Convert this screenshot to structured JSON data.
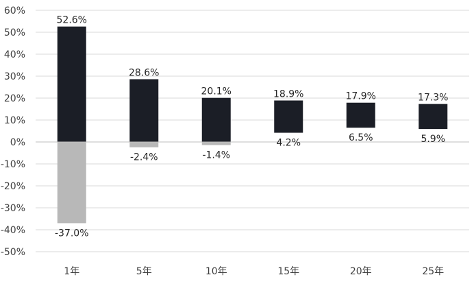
{
  "chart_data": {
    "type": "bar",
    "subtype": "floating-range",
    "categories": [
      "1年",
      "5年",
      "10年",
      "15年",
      "20年",
      "25年"
    ],
    "series": [
      {
        "role": "max",
        "values": [
          52.6,
          28.6,
          20.1,
          18.9,
          17.9,
          17.3
        ]
      },
      {
        "role": "min",
        "values": [
          -37.0,
          -2.4,
          -1.4,
          4.2,
          6.5,
          5.9
        ]
      }
    ],
    "max_labels": [
      "52.6%",
      "28.6%",
      "20.1%",
      "18.9%",
      "17.9%",
      "17.3%"
    ],
    "min_labels": [
      "-37.0%",
      "-2.4%",
      "-1.4%",
      "4.2%",
      "6.5%",
      "5.9%"
    ],
    "y_ticks": [
      60,
      50,
      40,
      30,
      20,
      10,
      0,
      -10,
      -20,
      -30,
      -40,
      -50
    ],
    "y_tick_labels": [
      "60%",
      "50%",
      "40%",
      "30%",
      "20%",
      "10%",
      "0%",
      "-10%",
      "-20%",
      "-30%",
      "-40%",
      "-50%"
    ],
    "ylim": [
      -50,
      60
    ],
    "grid": true,
    "legend": "none",
    "colors": {
      "positive": "#1b1e26",
      "negative": "#b8b8b8",
      "grid": "#d9d9d9"
    }
  }
}
